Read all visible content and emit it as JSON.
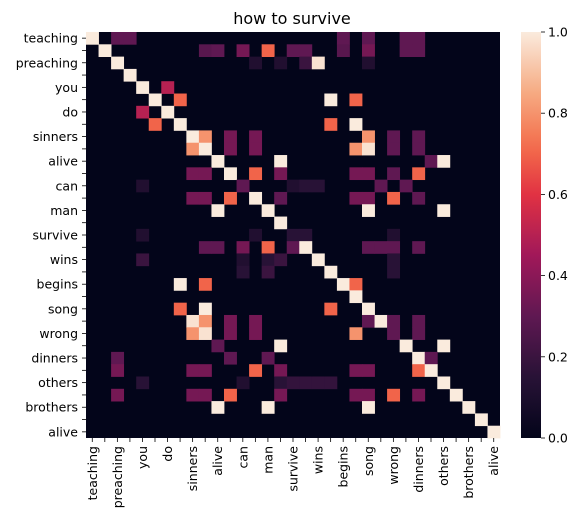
{
  "chart_data": {
    "type": "heatmap",
    "title": "how to survive",
    "xlabel": "",
    "ylabel": "",
    "row_labels": [
      "teaching",
      "",
      "preaching",
      "",
      "you",
      "",
      "do",
      "",
      "sinners",
      "",
      "alive",
      "",
      "can",
      "",
      "man",
      "",
      "survive",
      "",
      "wins",
      "",
      "begins",
      "",
      "song",
      "",
      "wrong",
      "",
      "dinners",
      "",
      "others",
      "",
      "brothers",
      "",
      "alive"
    ],
    "col_labels": [
      "teaching",
      "",
      "preaching",
      "",
      "you",
      "",
      "do",
      "",
      "sinners",
      "",
      "alive",
      "",
      "can",
      "",
      "man",
      "",
      "survive",
      "",
      "wins",
      "",
      "begins",
      "",
      "song",
      "",
      "wrong",
      "",
      "dinners",
      "",
      "others",
      "",
      "brothers",
      "",
      "alive"
    ],
    "colorbar": {
      "ticks": [
        "0.0",
        "0.2",
        "0.4",
        "0.6",
        "0.8",
        "1.0"
      ],
      "range": [
        0,
        1
      ]
    },
    "colormap": "rocket",
    "diagonal": 1.0,
    "cells": [
      [
        0,
        2,
        0.3
      ],
      [
        0,
        3,
        0.3
      ],
      [
        0,
        20,
        0.3
      ],
      [
        0,
        22,
        0.3
      ],
      [
        0,
        25,
        0.3
      ],
      [
        0,
        26,
        0.3
      ],
      [
        1,
        9,
        0.28
      ],
      [
        1,
        10,
        0.3
      ],
      [
        1,
        12,
        0.35
      ],
      [
        1,
        14,
        0.7
      ],
      [
        1,
        16,
        0.3
      ],
      [
        1,
        17,
        0.3
      ],
      [
        1,
        20,
        0.28
      ],
      [
        1,
        22,
        0.35
      ],
      [
        1,
        25,
        0.3
      ],
      [
        1,
        26,
        0.3
      ],
      [
        2,
        13,
        0.12
      ],
      [
        2,
        15,
        0.12
      ],
      [
        2,
        17,
        0.2
      ],
      [
        2,
        18,
        0.98
      ],
      [
        2,
        22,
        0.12
      ],
      [
        4,
        6,
        0.5
      ],
      [
        5,
        7,
        0.7
      ],
      [
        5,
        19,
        1.0
      ],
      [
        5,
        21,
        0.7
      ],
      [
        6,
        4,
        0.5
      ],
      [
        7,
        5,
        0.7
      ],
      [
        7,
        19,
        0.7
      ],
      [
        7,
        21,
        1.0
      ],
      [
        8,
        9,
        0.8
      ],
      [
        8,
        11,
        0.35
      ],
      [
        8,
        13,
        0.35
      ],
      [
        8,
        22,
        0.8
      ],
      [
        8,
        24,
        0.3
      ],
      [
        8,
        26,
        0.3
      ],
      [
        9,
        8,
        0.8
      ],
      [
        9,
        11,
        0.35
      ],
      [
        9,
        13,
        0.35
      ],
      [
        9,
        21,
        0.8
      ],
      [
        9,
        22,
        0.98
      ],
      [
        9,
        24,
        0.3
      ],
      [
        9,
        26,
        0.3
      ],
      [
        10,
        15,
        1.0
      ],
      [
        10,
        27,
        0.3
      ],
      [
        10,
        28,
        1.0
      ],
      [
        11,
        8,
        0.35
      ],
      [
        11,
        9,
        0.35
      ],
      [
        11,
        13,
        0.7
      ],
      [
        11,
        15,
        0.35
      ],
      [
        11,
        21,
        0.35
      ],
      [
        11,
        22,
        0.35
      ],
      [
        11,
        24,
        0.3
      ],
      [
        11,
        26,
        0.7
      ],
      [
        12,
        4,
        0.12
      ],
      [
        12,
        12,
        0.3
      ],
      [
        12,
        16,
        0.12
      ],
      [
        12,
        17,
        0.15
      ],
      [
        12,
        18,
        0.15
      ],
      [
        12,
        23,
        0.3
      ],
      [
        12,
        25,
        0.3
      ],
      [
        13,
        8,
        0.35
      ],
      [
        13,
        9,
        0.35
      ],
      [
        13,
        11,
        0.7
      ],
      [
        13,
        15,
        0.3
      ],
      [
        13,
        21,
        0.35
      ],
      [
        13,
        22,
        0.35
      ],
      [
        13,
        24,
        0.7
      ],
      [
        13,
        26,
        0.3
      ],
      [
        14,
        10,
        1.0
      ],
      [
        14,
        22,
        1.0
      ],
      [
        14,
        28,
        1.0
      ],
      [
        16,
        4,
        0.12
      ],
      [
        16,
        13,
        0.12
      ],
      [
        16,
        16,
        0.15
      ],
      [
        16,
        17,
        0.15
      ],
      [
        16,
        24,
        0.12
      ],
      [
        17,
        9,
        0.3
      ],
      [
        17,
        10,
        0.3
      ],
      [
        17,
        12,
        0.35
      ],
      [
        17,
        14,
        0.7
      ],
      [
        17,
        16,
        0.3
      ],
      [
        17,
        22,
        0.3
      ],
      [
        17,
        23,
        0.3
      ],
      [
        17,
        24,
        0.3
      ],
      [
        17,
        26,
        0.3
      ],
      [
        18,
        4,
        0.2
      ],
      [
        18,
        12,
        0.12
      ],
      [
        18,
        14,
        0.15
      ],
      [
        18,
        15,
        0.2
      ],
      [
        18,
        24,
        0.15
      ],
      [
        19,
        12,
        0.15
      ],
      [
        19,
        14,
        0.2
      ],
      [
        19,
        24,
        0.15
      ],
      [
        20,
        7,
        1.0
      ],
      [
        20,
        9,
        0.7
      ],
      [
        20,
        21,
        0.7
      ],
      [
        22,
        7,
        0.7
      ],
      [
        22,
        9,
        1.0
      ],
      [
        22,
        19,
        0.7
      ],
      [
        23,
        8,
        0.98
      ],
      [
        23,
        9,
        0.8
      ],
      [
        23,
        11,
        0.35
      ],
      [
        23,
        13,
        0.35
      ],
      [
        23,
        22,
        0.3
      ],
      [
        23,
        24,
        0.3
      ],
      [
        23,
        26,
        0.3
      ],
      [
        24,
        8,
        0.8
      ],
      [
        24,
        9,
        0.98
      ],
      [
        24,
        11,
        0.35
      ],
      [
        24,
        13,
        0.35
      ],
      [
        24,
        21,
        0.8
      ],
      [
        24,
        24,
        0.3
      ],
      [
        24,
        26,
        0.3
      ],
      [
        25,
        10,
        0.3
      ],
      [
        25,
        15,
        1.0
      ],
      [
        25,
        28,
        1.0
      ],
      [
        26,
        2,
        0.3
      ],
      [
        26,
        11,
        0.3
      ],
      [
        26,
        14,
        0.3
      ],
      [
        26,
        27,
        0.3
      ],
      [
        27,
        2,
        0.35
      ],
      [
        27,
        8,
        0.35
      ],
      [
        27,
        9,
        0.35
      ],
      [
        27,
        13,
        0.7
      ],
      [
        27,
        15,
        0.35
      ],
      [
        27,
        21,
        0.35
      ],
      [
        27,
        22,
        0.35
      ],
      [
        27,
        26,
        0.7
      ],
      [
        28,
        4,
        0.15
      ],
      [
        28,
        12,
        0.12
      ],
      [
        28,
        15,
        0.15
      ],
      [
        28,
        16,
        0.18
      ],
      [
        28,
        17,
        0.18
      ],
      [
        28,
        18,
        0.18
      ],
      [
        28,
        19,
        0.18
      ],
      [
        29,
        2,
        0.35
      ],
      [
        29,
        8,
        0.35
      ],
      [
        29,
        9,
        0.35
      ],
      [
        29,
        11,
        0.7
      ],
      [
        29,
        15,
        0.35
      ],
      [
        29,
        21,
        0.35
      ],
      [
        29,
        22,
        0.35
      ],
      [
        29,
        24,
        0.7
      ],
      [
        29,
        26,
        0.35
      ],
      [
        30,
        10,
        1.0
      ],
      [
        30,
        14,
        1.0
      ],
      [
        30,
        22,
        1.0
      ]
    ]
  }
}
